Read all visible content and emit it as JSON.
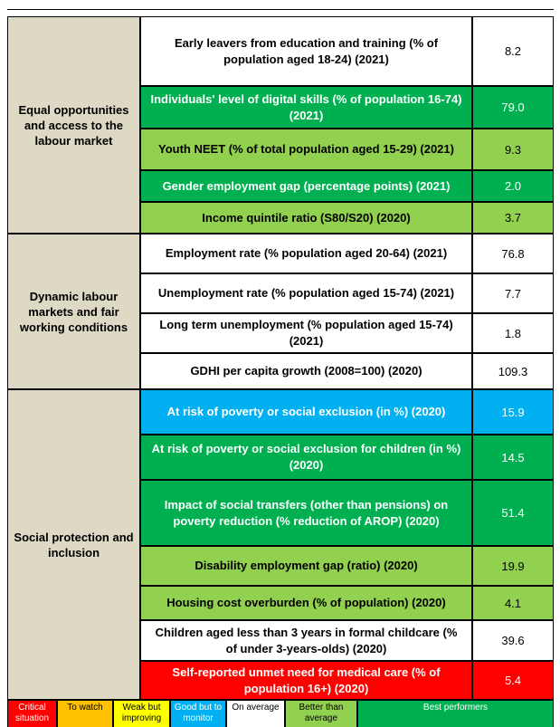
{
  "groups": [
    {
      "label": "Equal opportunities and access to the labour market",
      "rows": [
        {
          "indicator": "Early leavers from education and training (% of population aged 18-24) (2021)",
          "value": "8.2",
          "color": "#ffffff"
        },
        {
          "indicator": "Individuals' level of digital skills (% of population 16-74) (2021)",
          "value": "79.0",
          "color": "#00b050"
        },
        {
          "indicator": "Youth NEET (% of total population aged 15-29) (2021)",
          "value": "9.3",
          "color": "#92d050"
        },
        {
          "indicator": "Gender employment gap (percentage points) (2021)",
          "value": "2.0",
          "color": "#00b050"
        },
        {
          "indicator": "Income quintile ratio (S80/S20) (2020)",
          "value": "3.7",
          "color": "#92d050"
        }
      ]
    },
    {
      "label": "Dynamic labour markets and fair working conditions",
      "rows": [
        {
          "indicator": "Employment rate (% population aged 20-64) (2021)",
          "value": "76.8",
          "color": "#ffffff"
        },
        {
          "indicator": "Unemployment rate (% population aged 15-74) (2021)",
          "value": "7.7",
          "color": "#ffffff"
        },
        {
          "indicator": "Long term unemployment (% population aged 15-74) (2021)",
          "value": "1.8",
          "color": "#ffffff"
        },
        {
          "indicator": "GDHI per capita growth (2008=100) (2020)",
          "value": "109.3",
          "color": "#ffffff"
        }
      ]
    },
    {
      "label": "Social protection and inclusion",
      "rows": [
        {
          "indicator": "At risk of poverty or social exclusion (in %) (2020)",
          "value": "15.9",
          "color": "#00b0f0"
        },
        {
          "indicator": "At risk of poverty or social exclusion for children (in %) (2020)",
          "value": "14.5",
          "color": "#00b050"
        },
        {
          "indicator": "Impact of social transfers (other than pensions) on poverty reduction (% reduction of AROP) (2020)",
          "value": "51.4",
          "color": "#00b050"
        },
        {
          "indicator": "Disability employment gap (ratio) (2020)",
          "value": "19.9",
          "color": "#92d050"
        },
        {
          "indicator": "Housing cost overburden (% of population) (2020)",
          "value": "4.1",
          "color": "#92d050"
        },
        {
          "indicator": "Children aged less than 3 years in formal childcare (% of under 3-years-olds) (2020)",
          "value": "39.6",
          "color": "#ffffff"
        },
        {
          "indicator": "Self-reported unmet need for medical care (% of population 16+) (2020)",
          "value": "5.4",
          "color": "#ff0000"
        }
      ]
    }
  ],
  "legend": [
    {
      "label": "Critical situation",
      "color": "#ff0000"
    },
    {
      "label": "To watch",
      "color": "#ffc000"
    },
    {
      "label": "Weak but improving",
      "color": "#ffff00"
    },
    {
      "label": "Good but to monitor",
      "color": "#00b0f0"
    },
    {
      "label": "On average",
      "color": "#ffffff"
    },
    {
      "label": "Better than average",
      "color": "#92d050"
    },
    {
      "label": "Best performers",
      "color": "#00b050"
    }
  ]
}
